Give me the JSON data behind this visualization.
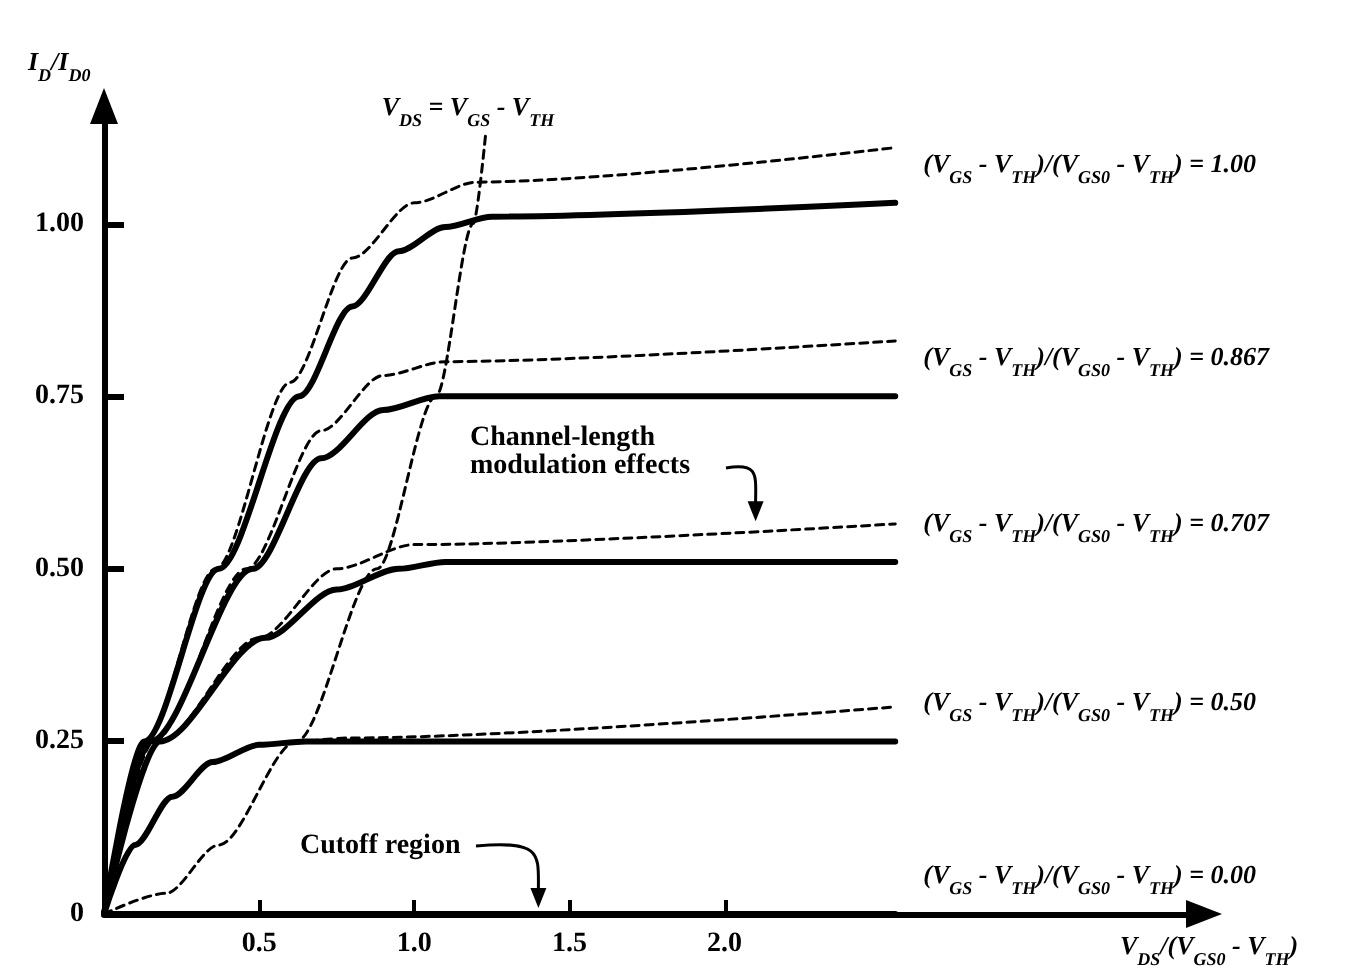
{
  "chart_data": {
    "type": "line",
    "ylabel": "I$_{D}$/I$_{D0}$",
    "xlabel": "V$_{DS}$/(V$_{GS0}$ - V$_{TH}$)",
    "xlim": [
      0,
      3.5
    ],
    "xticks": [
      {
        "value": 0.5,
        "label": "0.5"
      },
      {
        "value": 1,
        "label": "1.0"
      },
      {
        "value": 1.5,
        "label": "1.5"
      },
      {
        "value": 2,
        "label": "2.0"
      }
    ],
    "ylim": [
      0,
      1.15
    ],
    "yticks": [
      {
        "value": 0,
        "label": "0"
      },
      {
        "value": 0.25,
        "label": "0.25"
      },
      {
        "value": 0.5,
        "label": "0.50"
      },
      {
        "value": 0.75,
        "label": "0.75"
      },
      {
        "value": 1,
        "label": "1.00"
      }
    ],
    "grid": false,
    "legend": false,
    "marker": "none",
    "series": [
      {
        "name": "(V$_{GS}$ - V$_{TH}$)/(V$_{GS0}$ - V$_{TH}$) = 1.00",
        "color": "#000000",
        "line_style": "solid",
        "x": [
          0,
          0.13,
          0.37,
          0.63,
          0.8,
          0.95,
          1.1,
          1.25,
          2.55
        ],
        "values": [
          0,
          0.25,
          0.5,
          0.75,
          0.88,
          0.96,
          0.995,
          1.01,
          1.03
        ]
      },
      {
        "name": "(V$_{GS}$ - V$_{TH}$)/(V$_{GS0}$ - V$_{TH}$) = 0.867",
        "color": "#000000",
        "line_style": "solid",
        "x": [
          0,
          0.15,
          0.48,
          0.7,
          0.9,
          1.08,
          2.55
        ],
        "values": [
          0,
          0.25,
          0.5,
          0.66,
          0.73,
          0.75,
          0.75
        ]
      },
      {
        "name": "(V$_{GS}$ - V$_{TH}$)/(V$_{GS0}$ - V$_{TH}$) = 0.707",
        "color": "#000000",
        "line_style": "solid",
        "x": [
          0,
          0.18,
          0.52,
          0.75,
          0.95,
          1.1,
          2.55
        ],
        "values": [
          0,
          0.25,
          0.4,
          0.47,
          0.5,
          0.51,
          0.51
        ]
      },
      {
        "name": "(V$_{GS}$ - V$_{TH}$)/(V$_{GS0}$ - V$_{TH}$) = 0.50",
        "color": "#000000",
        "line_style": "solid",
        "x": [
          0,
          0.1,
          0.22,
          0.35,
          0.5,
          0.65,
          2.55
        ],
        "values": [
          0,
          0.1,
          0.17,
          0.22,
          0.245,
          0.25,
          0.25
        ]
      },
      {
        "name": "(V$_{GS}$ - V$_{TH}$)/(V$_{GS0}$ - V$_{TH}$) = 0.00",
        "color": "#000000",
        "line_style": "solid",
        "x": [
          0,
          2.55
        ],
        "values": [
          0,
          0
        ]
      },
      {
        "color": "#000000",
        "line_style": "dashed",
        "x": [
          0,
          0.13,
          0.36,
          0.6,
          0.8,
          1.0,
          1.2,
          2.55
        ],
        "values": [
          0,
          0.25,
          0.5,
          0.77,
          0.95,
          1.03,
          1.06,
          1.11
        ]
      },
      {
        "color": "#000000",
        "line_style": "dashed",
        "x": [
          0,
          0.16,
          0.46,
          0.7,
          0.9,
          1.1,
          2.55
        ],
        "values": [
          0,
          0.25,
          0.5,
          0.7,
          0.78,
          0.8,
          0.83
        ]
      },
      {
        "color": "#000000",
        "line_style": "dashed",
        "x": [
          0,
          0.18,
          0.5,
          0.75,
          1.0,
          2.55
        ],
        "values": [
          0,
          0.25,
          0.4,
          0.5,
          0.535,
          0.565
        ]
      },
      {
        "color": "#000000",
        "line_style": "dashed",
        "x": [
          0,
          0.1,
          0.22,
          0.35,
          0.5,
          0.8,
          2.55
        ],
        "values": [
          0,
          0.1,
          0.17,
          0.22,
          0.245,
          0.255,
          0.3
        ]
      },
      {
        "name": "V$_{DS}$ = V$_{GS}$ - V$_{TH}$",
        "color": "#000000",
        "line_style": "dashed",
        "x": [
          0,
          0.2,
          0.37,
          0.62,
          0.88,
          1.07,
          1.19,
          1.23
        ],
        "values": [
          0,
          0.03,
          0.1,
          0.25,
          0.5,
          0.75,
          1.0,
          1.13
        ]
      }
    ],
    "annotations": [
      "Channel-length modulation effects",
      "Cutoff region"
    ]
  }
}
